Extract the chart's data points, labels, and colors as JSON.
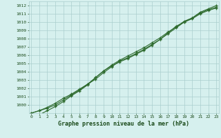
{
  "title": "Graphe pression niveau de la mer (hPa)",
  "x_values": [
    0,
    1,
    2,
    3,
    4,
    5,
    6,
    7,
    8,
    9,
    10,
    11,
    12,
    13,
    14,
    15,
    16,
    17,
    18,
    19,
    20,
    21,
    22,
    23
  ],
  "line1": [
    999.0,
    999.3,
    999.7,
    1000.2,
    1000.8,
    1001.3,
    1001.9,
    1002.5,
    1003.1,
    1003.9,
    1004.6,
    1005.3,
    1005.7,
    1006.2,
    1006.7,
    1007.3,
    1007.9,
    1008.6,
    1009.3,
    1010.0,
    1010.5,
    1011.2,
    1011.6,
    1012.0
  ],
  "line2": [
    999.0,
    999.3,
    999.6,
    1000.0,
    1000.6,
    1001.2,
    1001.8,
    1002.5,
    1003.3,
    1004.1,
    1004.8,
    1005.4,
    1005.9,
    1006.4,
    1006.9,
    1007.5,
    1008.1,
    1008.8,
    1009.4,
    1010.1,
    1010.5,
    1011.1,
    1011.5,
    1011.8
  ],
  "line3": [
    998.5,
    998.8,
    999.3,
    999.8,
    1000.4,
    1001.1,
    1001.7,
    1002.4,
    1003.3,
    1004.1,
    1004.7,
    1005.2,
    1005.6,
    1006.1,
    1006.6,
    1007.2,
    1007.9,
    1008.7,
    1009.5,
    1010.0,
    1010.4,
    1011.0,
    1011.4,
    1011.7
  ],
  "yticks": [
    1000,
    1001,
    1002,
    1003,
    1004,
    1005,
    1006,
    1007,
    1008,
    1009,
    1010,
    1011,
    1012
  ],
  "ymin": 999.0,
  "ymax": 1012.5,
  "line_color": "#2d6a2d",
  "bg_color": "#d6f0ee",
  "grid_color": "#aacece",
  "text_color": "#1a4a1a",
  "marker": "+",
  "title_bg": "#006600"
}
